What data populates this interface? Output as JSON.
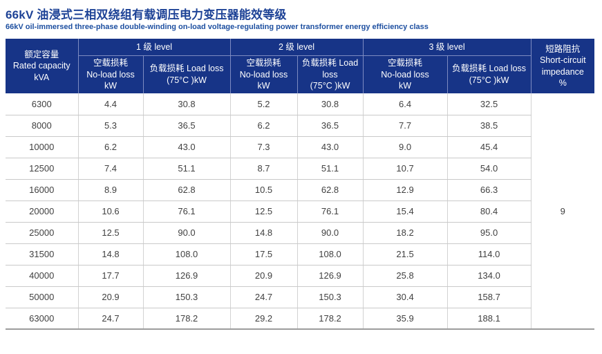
{
  "colors": {
    "header_bg": "#173487",
    "header_divider": "#7e8cc2",
    "title_color": "#1d4296",
    "subtitle_color": "#1d4fa0",
    "body_text": "#404040",
    "row_border": "#c9c9c9",
    "table_bottom_border": "#9c9c9c"
  },
  "page": {
    "title": "66kV 油浸式三相双绕组有载调压电力变压器能效等级",
    "subtitle": "66kV oil-immersed three-phase double-winding on-load voltage-regulating power transformer energy efficiency class"
  },
  "table": {
    "header": {
      "capacity": "额定容量\nRated capacity\nkVA",
      "groups": [
        "1 级 level",
        "2 级 level",
        "3 级 level"
      ],
      "subheaders": [
        "空载损耗\nNo-load loss\nkW",
        "负载损耗 Load loss\n(75°C )kW",
        "空载损耗\nNo-load loss\nkW",
        "负载损耗 Load\nloss\n(75°C )kW",
        "空载损耗\nNo-load loss\nkW",
        "负载损耗 Load loss\n(75°C )kW"
      ],
      "impedance": "短路阻抗\nShort-circuit\nimpedance\n%"
    },
    "impedance_value": "9",
    "rows": [
      [
        "6300",
        "4.4",
        "30.8",
        "5.2",
        "30.8",
        "6.4",
        "32.5"
      ],
      [
        "8000",
        "5.3",
        "36.5",
        "6.2",
        "36.5",
        "7.7",
        "38.5"
      ],
      [
        "10000",
        "6.2",
        "43.0",
        "7.3",
        "43.0",
        "9.0",
        "45.4"
      ],
      [
        "12500",
        "7.4",
        "51.1",
        "8.7",
        "51.1",
        "10.7",
        "54.0"
      ],
      [
        "16000",
        "8.9",
        "62.8",
        "10.5",
        "62.8",
        "12.9",
        "66.3"
      ],
      [
        "20000",
        "10.6",
        "76.1",
        "12.5",
        "76.1",
        "15.4",
        "80.4"
      ],
      [
        "25000",
        "12.5",
        "90.0",
        "14.8",
        "90.0",
        "18.2",
        "95.0"
      ],
      [
        "31500",
        "14.8",
        "108.0",
        "17.5",
        "108.0",
        "21.5",
        "114.0"
      ],
      [
        "40000",
        "17.7",
        "126.9",
        "20.9",
        "126.9",
        "25.8",
        "134.0"
      ],
      [
        "50000",
        "20.9",
        "150.3",
        "24.7",
        "150.3",
        "30.4",
        "158.7"
      ],
      [
        "63000",
        "24.7",
        "178.2",
        "29.2",
        "178.2",
        "35.9",
        "188.1"
      ]
    ]
  }
}
